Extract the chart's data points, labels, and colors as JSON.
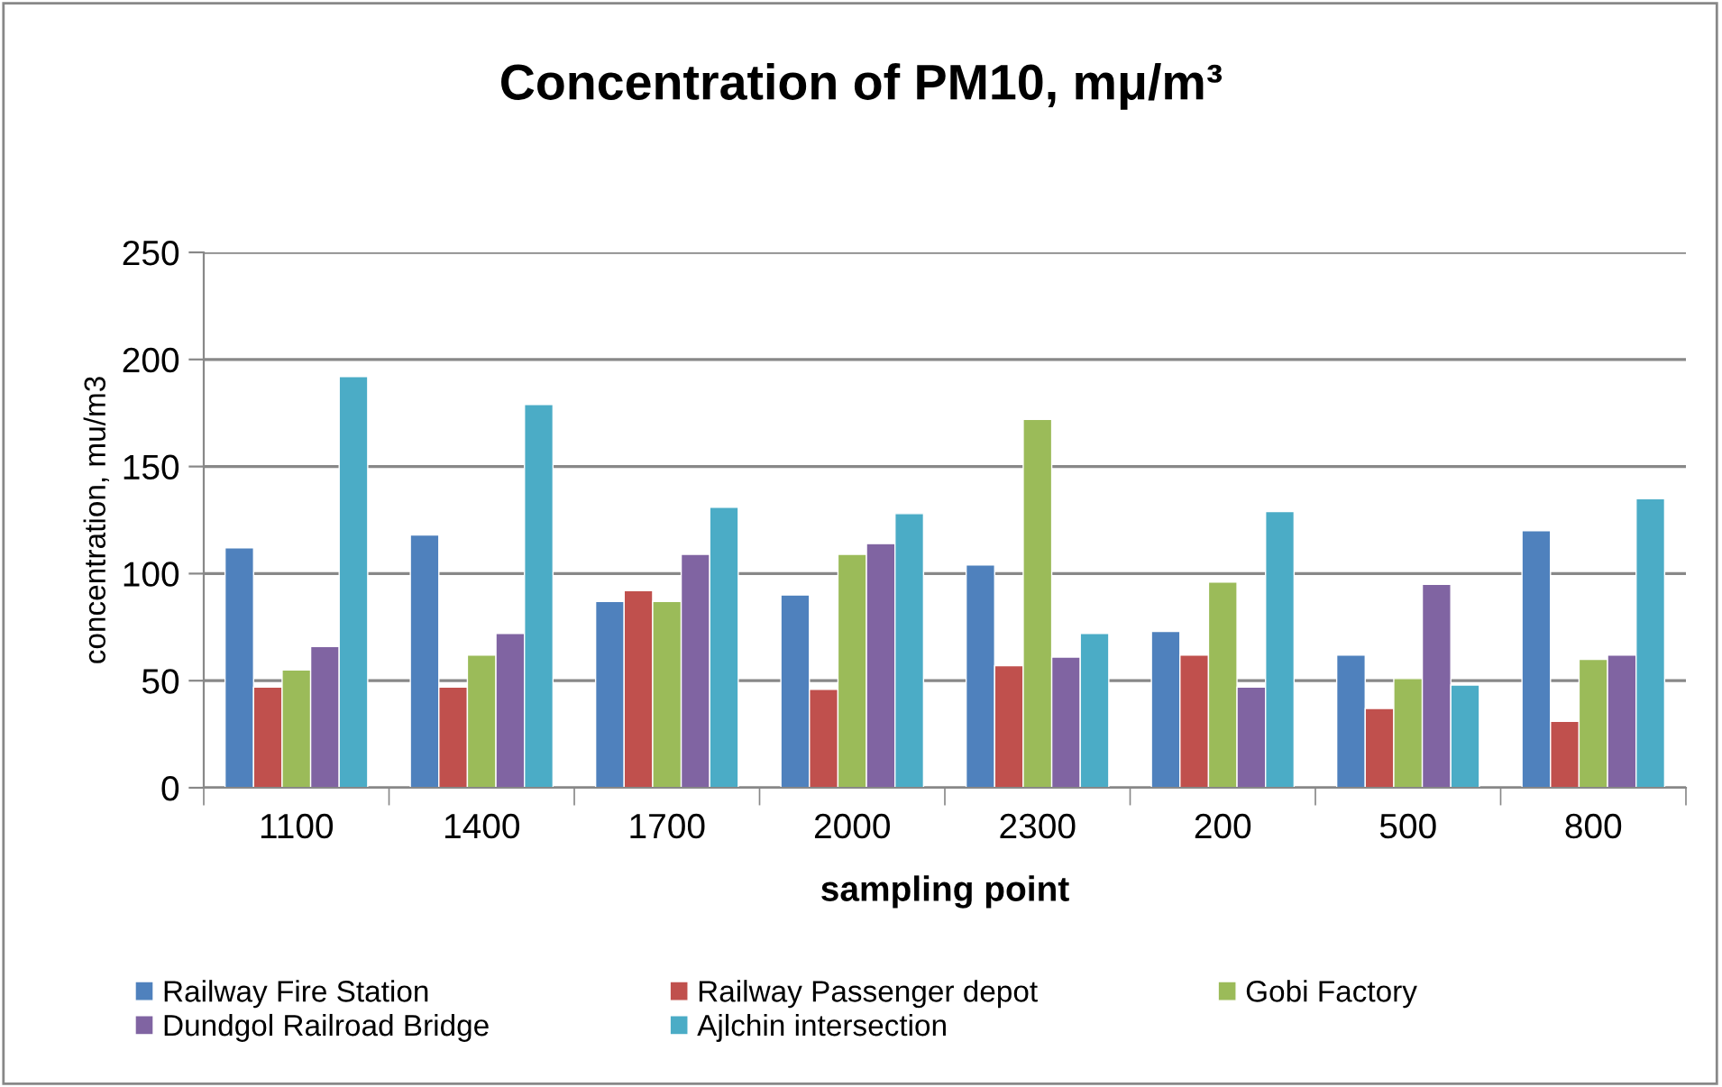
{
  "chart_data": {
    "type": "bar",
    "title": "Concentration of PM10, mμ/m³",
    "xlabel": "sampling point",
    "ylabel": "concentration, mu/m3",
    "categories": [
      "1100",
      "1400",
      "1700",
      "2000",
      "2300",
      "200",
      "500",
      "800"
    ],
    "series": [
      {
        "name": "Railway Fire Station",
        "color": "#4f81bd",
        "values": [
          112,
          118,
          87,
          90,
          104,
          73,
          62,
          120
        ]
      },
      {
        "name": "Railway Passenger depot",
        "color": "#c0504d",
        "values": [
          47,
          47,
          92,
          46,
          57,
          62,
          37,
          31
        ]
      },
      {
        "name": "Gobi Factory",
        "color": "#9bbb59",
        "values": [
          55,
          62,
          87,
          109,
          172,
          96,
          51,
          60
        ]
      },
      {
        "name": "Dundgol Railroad Bridge",
        "color": "#8064a2",
        "values": [
          66,
          72,
          109,
          114,
          61,
          47,
          95,
          62
        ]
      },
      {
        "name": "Ajlchin intersection",
        "color": "#4bacc6",
        "values": [
          192,
          179,
          131,
          128,
          72,
          129,
          48,
          135
        ]
      }
    ],
    "ylim": [
      0,
      250
    ],
    "yticks": [
      0,
      50,
      100,
      150,
      200,
      250
    ],
    "grid": "y",
    "legend": "bottom"
  }
}
